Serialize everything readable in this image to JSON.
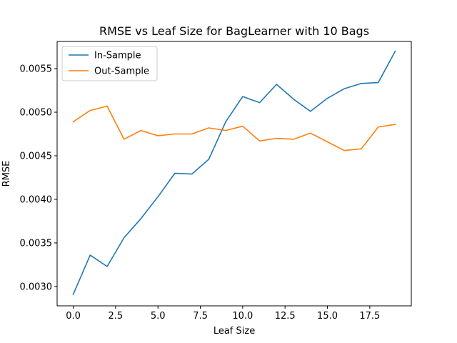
{
  "chart_data": {
    "type": "line",
    "title": "RMSE vs Leaf Size for BagLearner with 10 Bags",
    "xlabel": "Leaf Size",
    "ylabel": "RMSE",
    "x": [
      0,
      1,
      2,
      3,
      4,
      5,
      6,
      7,
      8,
      9,
      10,
      11,
      12,
      13,
      14,
      15,
      16,
      17,
      18,
      19
    ],
    "xlim": [
      -0.95,
      19.95
    ],
    "ylim": [
      0.002778,
      0.005812
    ],
    "xticks": [
      0.0,
      2.5,
      5.0,
      7.5,
      10.0,
      12.5,
      15.0,
      17.5
    ],
    "xtick_labels": [
      "0.0",
      "2.5",
      "5.0",
      "7.5",
      "10.0",
      "12.5",
      "15.0",
      "17.5"
    ],
    "yticks": [
      0.003,
      0.0035,
      0.004,
      0.0045,
      0.005,
      0.0055
    ],
    "ytick_labels": [
      "0.0030",
      "0.0035",
      "0.0040",
      "0.0045",
      "0.0050",
      "0.0055"
    ],
    "legend_position": "top-left",
    "grid": false,
    "series": [
      {
        "name": "In-Sample",
        "color": "#1f77b4",
        "values": [
          0.00291,
          0.00336,
          0.00323,
          0.00356,
          0.00378,
          0.00403,
          0.0043,
          0.00429,
          0.00446,
          0.00489,
          0.00518,
          0.00511,
          0.00532,
          0.00515,
          0.00501,
          0.00516,
          0.00527,
          0.00533,
          0.00534,
          0.0057
        ]
      },
      {
        "name": "Out-Sample",
        "color": "#ff7f0e",
        "values": [
          0.00489,
          0.00502,
          0.00507,
          0.00469,
          0.00479,
          0.00473,
          0.00475,
          0.00475,
          0.00482,
          0.00479,
          0.00484,
          0.00467,
          0.0047,
          0.00469,
          0.00476,
          0.00466,
          0.00456,
          0.00458,
          0.00483,
          0.00486
        ]
      }
    ]
  }
}
